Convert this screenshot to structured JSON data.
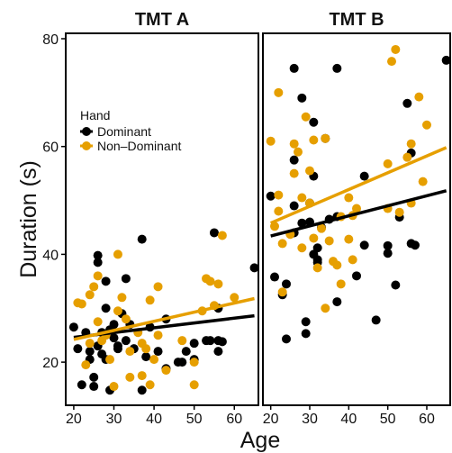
{
  "chart_data": {
    "type": "scatter",
    "xlabel": "Age",
    "ylabel": "Duration (s)",
    "xlim": [
      18,
      66
    ],
    "ylim": [
      12,
      81
    ],
    "x_ticks": [
      20,
      30,
      40,
      50,
      60
    ],
    "y_ticks": [
      20,
      40,
      60,
      80
    ],
    "colors": {
      "Dominant": "#000000",
      "Non-Dominant": "#E69F00"
    },
    "legend": {
      "title": "Hand",
      "placement": "top-left of first panel",
      "entries": [
        {
          "name": "Dominant",
          "color": "#000000"
        },
        {
          "name": "Non–Dominant",
          "color": "#E69F00"
        }
      ]
    },
    "panels": [
      {
        "title": "TMT A",
        "series": [
          {
            "name": "Dominant",
            "color": "#000000",
            "trend": [
              [
                20,
                24.6
              ],
              [
                65,
                28.6
              ]
            ],
            "points": [
              [
                20,
                26.5
              ],
              [
                21,
                22.5
              ],
              [
                22,
                15.8
              ],
              [
                23,
                25.5
              ],
              [
                24,
                22.0
              ],
              [
                24,
                20.5
              ],
              [
                25,
                17.2
              ],
              [
                25,
                15.5
              ],
              [
                26,
                38.5
              ],
              [
                26,
                39.8
              ],
              [
                26,
                23.0
              ],
              [
                27,
                21.5
              ],
              [
                27,
                25.5
              ],
              [
                28,
                35.0
              ],
              [
                28,
                20.5
              ],
              [
                28,
                30.0
              ],
              [
                29,
                26.0
              ],
              [
                29,
                14.8
              ],
              [
                30,
                27.0
              ],
              [
                30,
                24.5
              ],
              [
                31,
                23.0
              ],
              [
                31,
                22.5
              ],
              [
                32,
                29.0
              ],
              [
                33,
                24.0
              ],
              [
                33,
                35.5
              ],
              [
                34,
                27.0
              ],
              [
                35,
                22.5
              ],
              [
                37,
                42.8
              ],
              [
                37,
                14.8
              ],
              [
                38,
                21.0
              ],
              [
                39,
                26.5
              ],
              [
                41,
                22.0
              ],
              [
                43,
                18.8
              ],
              [
                43,
                28.0
              ],
              [
                46,
                20.0
              ],
              [
                47,
                20.0
              ],
              [
                48,
                22.0
              ],
              [
                50,
                23.5
              ],
              [
                50,
                20.5
              ],
              [
                53,
                24.0
              ],
              [
                54,
                24.0
              ],
              [
                55,
                44.0
              ],
              [
                56,
                30.0
              ],
              [
                56,
                22.0
              ],
              [
                56,
                24.0
              ],
              [
                57,
                23.8
              ],
              [
                65,
                37.5
              ]
            ]
          },
          {
            "name": "Non–Dominant",
            "color": "#E69F00",
            "trend": [
              [
                20,
                24.2
              ],
              [
                65,
                31.8
              ]
            ],
            "points": [
              [
                21,
                31.0
              ],
              [
                22,
                30.8
              ],
              [
                23,
                19.5
              ],
              [
                24,
                23.5
              ],
              [
                24,
                32.5
              ],
              [
                25,
                34.0
              ],
              [
                26,
                27.5
              ],
              [
                26,
                36.0
              ],
              [
                27,
                24.0
              ],
              [
                28,
                25.0
              ],
              [
                29,
                20.5
              ],
              [
                30,
                15.5
              ],
              [
                31,
                29.5
              ],
              [
                31,
                40.0
              ],
              [
                32,
                32.0
              ],
              [
                33,
                28.0
              ],
              [
                34,
                17.2
              ],
              [
                34,
                22.0
              ],
              [
                36,
                25.5
              ],
              [
                37,
                17.5
              ],
              [
                37,
                23.5
              ],
              [
                38,
                22.5
              ],
              [
                39,
                31.5
              ],
              [
                39,
                15.8
              ],
              [
                40,
                20.5
              ],
              [
                41,
                34.0
              ],
              [
                41,
                25.0
              ],
              [
                43,
                18.5
              ],
              [
                47,
                24.0
              ],
              [
                50,
                20.0
              ],
              [
                50,
                15.8
              ],
              [
                52,
                29.5
              ],
              [
                53,
                35.5
              ],
              [
                54,
                35.0
              ],
              [
                55,
                30.5
              ],
              [
                56,
                34.5
              ],
              [
                57,
                43.5
              ],
              [
                60,
                32.0
              ]
            ]
          }
        ]
      },
      {
        "title": "TMT B",
        "series": [
          {
            "name": "Dominant",
            "color": "#000000",
            "trend": [
              [
                20,
                43.4
              ],
              [
                65,
                51.8
              ]
            ],
            "points": [
              [
                20,
                50.8
              ],
              [
                21,
                35.8
              ],
              [
                23,
                32.5
              ],
              [
                24,
                34.5
              ],
              [
                24,
                24.3
              ],
              [
                26,
                74.5
              ],
              [
                26,
                57.5
              ],
              [
                26,
                49.0
              ],
              [
                26,
                44.0
              ],
              [
                28,
                69.0
              ],
              [
                28,
                45.8
              ],
              [
                29,
                27.5
              ],
              [
                29,
                25.3
              ],
              [
                30,
                49.5
              ],
              [
                30,
                46.0
              ],
              [
                31,
                64.5
              ],
              [
                31,
                54.5
              ],
              [
                31,
                40.0
              ],
              [
                32,
                38.5
              ],
              [
                32,
                39.0
              ],
              [
                32,
                41.2
              ],
              [
                33,
                45.0
              ],
              [
                34,
                61.5
              ],
              [
                35,
                46.5
              ],
              [
                37,
                74.5
              ],
              [
                37,
                47.0
              ],
              [
                37,
                31.2
              ],
              [
                42,
                36.0
              ],
              [
                44,
                54.5
              ],
              [
                44,
                41.7
              ],
              [
                47,
                27.8
              ],
              [
                50,
                41.6
              ],
              [
                50,
                40.2
              ],
              [
                52,
                34.3
              ],
              [
                53,
                46.9
              ],
              [
                55,
                68.0
              ],
              [
                56,
                42.0
              ],
              [
                56,
                58.8
              ],
              [
                57,
                41.7
              ],
              [
                65,
                76.0
              ]
            ]
          },
          {
            "name": "Non–Dominant",
            "color": "#E69F00",
            "trend": [
              [
                20,
                45.8
              ],
              [
                65,
                59.8
              ]
            ],
            "points": [
              [
                20,
                61.0
              ],
              [
                21,
                45.2
              ],
              [
                22,
                70.0
              ],
              [
                22,
                48.0
              ],
              [
                22,
                51.0
              ],
              [
                23,
                42.0
              ],
              [
                23,
                33.0
              ],
              [
                25,
                43.7
              ],
              [
                26,
                60.5
              ],
              [
                26,
                55.0
              ],
              [
                27,
                59.0
              ],
              [
                28,
                41.2
              ],
              [
                28,
                50.5
              ],
              [
                29,
                65.5
              ],
              [
                30,
                55.5
              ],
              [
                30,
                49.5
              ],
              [
                31,
                61.2
              ],
              [
                31,
                43.0
              ],
              [
                32,
                37.5
              ],
              [
                33,
                44.8
              ],
              [
                34,
                30.0
              ],
              [
                34,
                61.5
              ],
              [
                35,
                42.5
              ],
              [
                36,
                38.7
              ],
              [
                37,
                38.0
              ],
              [
                38,
                47.0
              ],
              [
                38,
                34.5
              ],
              [
                40,
                42.8
              ],
              [
                40,
                50.5
              ],
              [
                41,
                39.0
              ],
              [
                41,
                47.2
              ],
              [
                42,
                48.5
              ],
              [
                50,
                56.8
              ],
              [
                50,
                48.5
              ],
              [
                51,
                75.8
              ],
              [
                52,
                78.0
              ],
              [
                53,
                47.8
              ],
              [
                55,
                58.0
              ],
              [
                56,
                49.5
              ],
              [
                56,
                60.5
              ],
              [
                58,
                69.2
              ],
              [
                59,
                53.5
              ],
              [
                60,
                64.0
              ]
            ]
          }
        ]
      }
    ]
  }
}
